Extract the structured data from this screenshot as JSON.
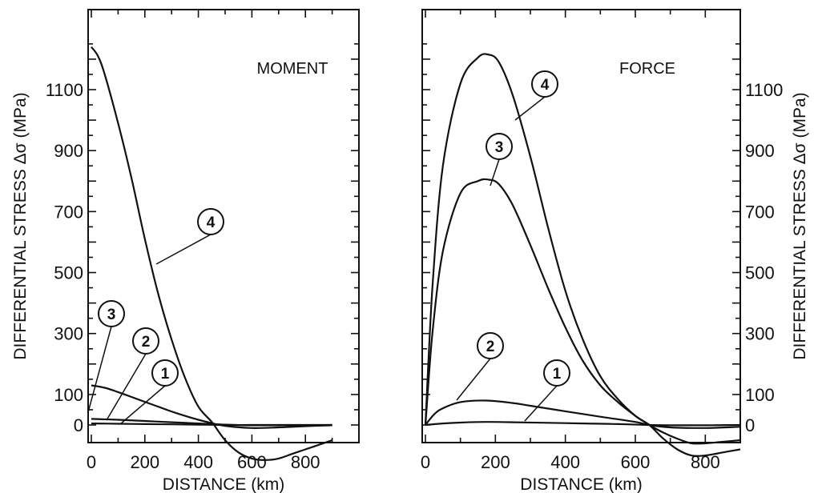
{
  "chart_data": [
    {
      "type": "line",
      "title": "MOMENT",
      "xlabel": "DISTANCE (km)",
      "ylabel": "DIFFERENTIAL STRESS Δσ (MPa)",
      "xlim": [
        0,
        1000
      ],
      "ylim": [
        -100,
        1300
      ],
      "x_ticks": [
        0,
        200,
        400,
        600,
        800
      ],
      "y_tick_labels": [
        0,
        100,
        300,
        500,
        700,
        900,
        1100
      ],
      "series": [
        {
          "name": "1",
          "x": [
            0,
            100,
            200,
            300,
            400,
            500,
            600,
            700,
            800,
            900
          ],
          "y": [
            5,
            4,
            3,
            2,
            1,
            0,
            0,
            0,
            0,
            0
          ]
        },
        {
          "name": "2",
          "x": [
            0,
            100,
            200,
            300,
            400,
            500,
            600,
            700,
            800,
            900
          ],
          "y": [
            20,
            17,
            13,
            9,
            5,
            1,
            -1,
            -1,
            -1,
            0
          ]
        },
        {
          "name": "3",
          "x": [
            0,
            50,
            100,
            150,
            200,
            250,
            300,
            350,
            400,
            450,
            500,
            600,
            700,
            800,
            900
          ],
          "y": [
            130,
            122,
            108,
            92,
            76,
            60,
            44,
            30,
            17,
            6,
            -3,
            -10,
            -8,
            -4,
            -1
          ]
        },
        {
          "name": "4",
          "x": [
            0,
            25,
            50,
            100,
            150,
            200,
            250,
            300,
            350,
            400,
            450,
            500,
            550,
            600,
            650,
            700,
            750,
            800,
            850,
            900
          ],
          "y": [
            1240,
            1210,
            1150,
            990,
            810,
            610,
            430,
            280,
            155,
            60,
            10,
            -50,
            -90,
            -110,
            -115,
            -110,
            -95,
            -80,
            -65,
            -50
          ]
        }
      ]
    },
    {
      "type": "line",
      "title": "FORCE",
      "xlabel": "DISTANCE (km)",
      "ylabel": "DIFFERENTIAL STRESS Δσ (MPa)",
      "xlim": [
        0,
        900
      ],
      "ylim": [
        -100,
        1300
      ],
      "x_ticks": [
        0,
        200,
        400,
        600,
        800
      ],
      "y_tick_labels": [
        0,
        100,
        300,
        500,
        700,
        900,
        1100
      ],
      "series": [
        {
          "name": "1",
          "x": [
            0,
            50,
            100,
            175,
            250,
            350,
            450,
            550,
            640,
            700,
            800,
            900
          ],
          "y": [
            0,
            5,
            8,
            10,
            9,
            7,
            5,
            3,
            0,
            -1,
            -1,
            0
          ]
        },
        {
          "name": "2",
          "x": [
            0,
            25,
            50,
            100,
            175,
            250,
            300,
            400,
            500,
            600,
            640,
            700,
            800,
            900
          ],
          "y": [
            0,
            35,
            55,
            75,
            80,
            72,
            63,
            45,
            27,
            10,
            0,
            -8,
            -10,
            -6
          ]
        },
        {
          "name": "3",
          "x": [
            0,
            20,
            50,
            100,
            150,
            180,
            210,
            250,
            300,
            350,
            400,
            450,
            500,
            550,
            600,
            640,
            680,
            720,
            760,
            800,
            850,
            900
          ],
          "y": [
            0,
            300,
            570,
            760,
            800,
            805,
            790,
            720,
            590,
            450,
            320,
            210,
            130,
            75,
            30,
            0,
            -25,
            -45,
            -60,
            -60,
            -55,
            -50
          ]
        },
        {
          "name": "4",
          "x": [
            0,
            20,
            50,
            100,
            150,
            180,
            210,
            250,
            300,
            350,
            400,
            450,
            500,
            550,
            600,
            640,
            680,
            720,
            760,
            800,
            850,
            900
          ],
          "y": [
            0,
            450,
            850,
            1120,
            1205,
            1215,
            1190,
            1080,
            880,
            650,
            440,
            280,
            160,
            85,
            30,
            0,
            -45,
            -80,
            -100,
            -100,
            -90,
            -80
          ]
        }
      ]
    }
  ]
}
